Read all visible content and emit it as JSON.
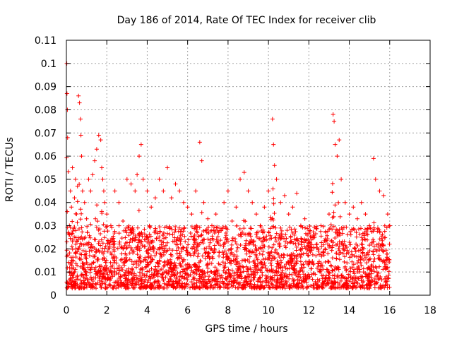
{
  "chart_data": {
    "type": "scatter",
    "title": "Day 186 of 2014, Rate Of TEC Index for receiver clib",
    "xlabel": "GPS time / hours",
    "ylabel": "ROTI / TECUs",
    "xlim": [
      0,
      18
    ],
    "ylim": [
      0,
      0.11
    ],
    "xticks": [
      0,
      2,
      4,
      6,
      8,
      10,
      12,
      14,
      16,
      18
    ],
    "xtick_labels": [
      "0",
      "2",
      "4",
      "6",
      "8",
      "10",
      "12",
      "14",
      "16",
      "18"
    ],
    "yticks": [
      0,
      0.01,
      0.02,
      0.03,
      0.04,
      0.05,
      0.06,
      0.07,
      0.08,
      0.09,
      0.1,
      0.11
    ],
    "ytick_labels": [
      "0",
      "0.01",
      "0.02",
      "0.03",
      "0.04",
      "0.05",
      "0.06",
      "0.07",
      "0.08",
      "0.09",
      "0.1",
      "0.11"
    ],
    "grid": true,
    "marker": "+",
    "color": "#ff0000",
    "series": [
      {
        "name": "ROTI",
        "x": [
          0.02,
          0.03,
          0.05,
          0.06,
          0.15,
          0.2,
          0.25,
          0.3,
          0.4,
          0.45,
          0.5,
          0.55,
          0.6,
          0.65,
          0.7,
          0.72,
          0.75,
          0.8,
          0.9,
          1.0,
          1.1,
          1.2,
          1.3,
          1.4,
          1.5,
          1.6,
          1.7,
          1.75,
          1.8,
          1.85,
          1.9,
          2.0,
          2.2,
          2.4,
          2.6,
          2.8,
          3.0,
          3.2,
          3.4,
          3.5,
          3.6,
          3.7,
          3.8,
          4.0,
          4.2,
          4.4,
          4.6,
          4.8,
          5.0,
          5.2,
          5.4,
          5.6,
          5.8,
          6.0,
          6.2,
          6.4,
          6.6,
          6.7,
          6.8,
          7.0,
          7.2,
          7.4,
          7.6,
          7.8,
          8.0,
          8.2,
          8.4,
          8.6,
          8.8,
          9.0,
          9.2,
          9.4,
          9.6,
          9.8,
          10.0,
          10.2,
          10.25,
          10.3,
          10.4,
          10.6,
          10.8,
          11.0,
          11.2,
          11.4,
          11.6,
          11.8,
          12.0,
          12.2,
          12.4,
          12.6,
          12.8,
          13.0,
          13.2,
          13.25,
          13.3,
          13.4,
          13.5,
          13.6,
          13.8,
          14.0,
          14.2,
          14.4,
          14.6,
          14.8,
          15.0,
          15.2,
          15.3,
          15.5,
          15.7,
          15.9,
          16.0
        ],
        "y": [
          0.1,
          0.087,
          0.08,
          0.068,
          0.03,
          0.045,
          0.038,
          0.055,
          0.042,
          0.05,
          0.035,
          0.047,
          0.086,
          0.083,
          0.076,
          0.069,
          0.06,
          0.045,
          0.04,
          0.033,
          0.05,
          0.045,
          0.052,
          0.058,
          0.063,
          0.069,
          0.067,
          0.055,
          0.05,
          0.045,
          0.04,
          0.035,
          0.03,
          0.045,
          0.04,
          0.032,
          0.05,
          0.048,
          0.045,
          0.052,
          0.06,
          0.065,
          0.05,
          0.045,
          0.038,
          0.042,
          0.05,
          0.045,
          0.055,
          0.042,
          0.048,
          0.045,
          0.04,
          0.038,
          0.035,
          0.045,
          0.066,
          0.058,
          0.04,
          0.033,
          0.03,
          0.035,
          0.028,
          0.04,
          0.045,
          0.032,
          0.038,
          0.05,
          0.053,
          0.045,
          0.04,
          0.035,
          0.03,
          0.038,
          0.045,
          0.076,
          0.065,
          0.056,
          0.05,
          0.04,
          0.043,
          0.035,
          0.038,
          0.044,
          0.03,
          0.033,
          0.028,
          0.025,
          0.022,
          0.03,
          0.02,
          0.035,
          0.078,
          0.075,
          0.065,
          0.06,
          0.067,
          0.05,
          0.04,
          0.035,
          0.038,
          0.033,
          0.04,
          0.035,
          0.03,
          0.059,
          0.05,
          0.045,
          0.043,
          0.035,
          0.03
        ]
      }
    ],
    "dense_band": {
      "x_range": [
        0.0,
        16.0
      ],
      "y_range": [
        0.003,
        0.03
      ],
      "description": "dense cloud of + markers"
    }
  }
}
